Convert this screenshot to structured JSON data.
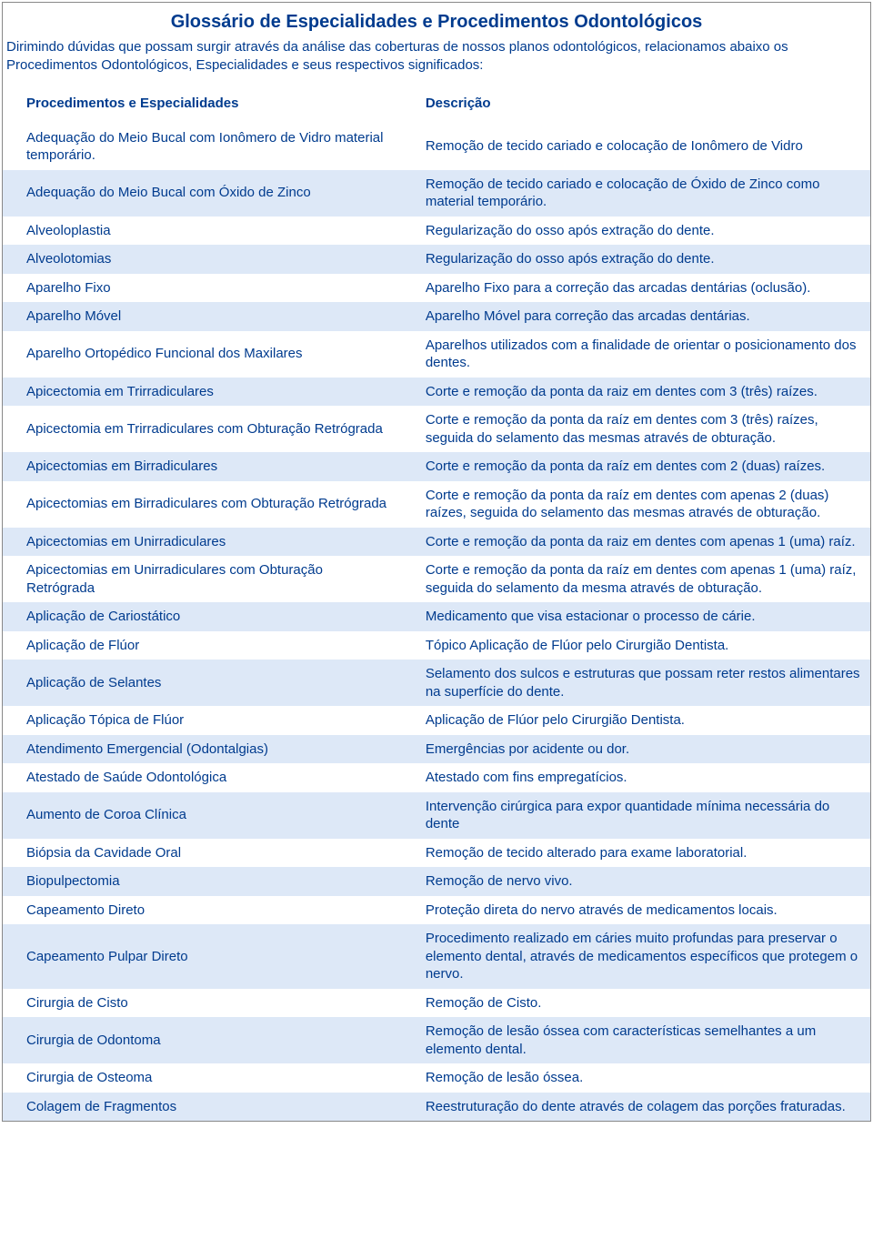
{
  "colors": {
    "text": "#003b8e",
    "row_alt_bg": "#dde8f7",
    "border": "#888888",
    "background": "#ffffff"
  },
  "typography": {
    "title_fontsize": 20,
    "body_fontsize": 15
  },
  "title": "Glossário de Especialidades e Procedimentos Odontológicos",
  "subtitle": "Dirimindo dúvidas que possam surgir através da análise das coberturas de nossos planos odontológicos, relacionamos abaixo os Procedimentos Odontológicos, Especialidades e seus respectivos significados:",
  "table": {
    "headers": {
      "proc": "Procedimentos e Especialidades",
      "desc": "Descrição"
    },
    "rows": [
      {
        "proc": "Adequação do Meio Bucal com Ionômero de Vidro material temporário.",
        "desc": "Remoção de tecido cariado e colocação de Ionômero de Vidro"
      },
      {
        "proc": "Adequação do Meio Bucal com Óxido de Zinco",
        "desc": "Remoção de tecido cariado e colocação de Óxido de Zinco como material temporário."
      },
      {
        "proc": "Alveoloplastia",
        "desc": "Regularização do osso após extração do dente."
      },
      {
        "proc": "Alveolotomias",
        "desc": "Regularização do osso após extração do dente."
      },
      {
        "proc": "Aparelho Fixo",
        "desc": "Aparelho Fixo para a correção das arcadas dentárias (oclusão)."
      },
      {
        "proc": "Aparelho Móvel",
        "desc": "Aparelho Móvel para correção das arcadas dentárias."
      },
      {
        "proc": "Aparelho Ortopédico Funcional dos Maxilares",
        "desc": "Aparelhos utilizados com a finalidade de orientar o posicionamento dos dentes."
      },
      {
        "proc": "Apicectomia em Trirradiculares",
        "desc": "Corte e remoção da ponta da raiz em dentes com 3 (três) raízes."
      },
      {
        "proc": "Apicectomia em Trirradiculares com Obturação Retrógrada",
        "desc": "Corte e remoção da ponta da raíz em dentes com 3 (três) raízes, seguida do selamento das mesmas através de obturação."
      },
      {
        "proc": "Apicectomias em Birradiculares",
        "desc": "Corte e remoção da ponta da raíz em dentes com 2 (duas) raízes."
      },
      {
        "proc": "Apicectomias em Birradiculares com Obturação Retrógrada",
        "desc": "Corte e remoção da ponta da raíz em dentes com apenas 2 (duas) raízes, seguida do selamento das mesmas através de obturação."
      },
      {
        "proc": "Apicectomias em Unirradiculares",
        "desc": "Corte e remoção da ponta da raiz em dentes com apenas 1 (uma) raíz."
      },
      {
        "proc": "Apicectomias em Unirradiculares com Obturação Retrógrada",
        "desc": "Corte e remoção da ponta da raíz em dentes com apenas 1 (uma) raíz, seguida do selamento da mesma através de obturação."
      },
      {
        "proc": "Aplicação de Cariostático",
        "desc": "Medicamento que visa estacionar o processo de cárie."
      },
      {
        "proc": "Aplicação de Flúor",
        "desc": "Tópico Aplicação de Flúor pelo Cirurgião Dentista."
      },
      {
        "proc": "Aplicação de Selantes",
        "desc": "Selamento dos sulcos e estruturas que possam reter restos alimentares na superfície do dente."
      },
      {
        "proc": "Aplicação Tópica de Flúor",
        "desc": "Aplicação de Flúor pelo Cirurgião Dentista."
      },
      {
        "proc": "Atendimento Emergencial (Odontalgias)",
        "desc": "Emergências por acidente ou dor."
      },
      {
        "proc": "Atestado de Saúde Odontológica",
        "desc": "Atestado com fins empregatícios."
      },
      {
        "proc": "Aumento de Coroa Clínica",
        "desc": "Intervenção cirúrgica para expor quantidade mínima necessária do dente"
      },
      {
        "proc": "Biópsia da Cavidade Oral",
        "desc": "Remoção de tecido alterado para exame laboratorial."
      },
      {
        "proc": "Biopulpectomia",
        "desc": "Remoção de nervo vivo."
      },
      {
        "proc": "Capeamento Direto",
        "desc": "Proteção direta do nervo através de medicamentos locais."
      },
      {
        "proc": "Capeamento Pulpar Direto",
        "desc": "Procedimento realizado em cáries muito profundas para preservar o elemento dental, através de medicamentos específicos que protegem o nervo."
      },
      {
        "proc": "Cirurgia de Cisto",
        "desc": "Remoção de Cisto."
      },
      {
        "proc": "Cirurgia de Odontoma",
        "desc": "Remoção de lesão óssea com características semelhantes a um elemento dental."
      },
      {
        "proc": "Cirurgia de Osteoma",
        "desc": "Remoção de lesão óssea."
      },
      {
        "proc": "Colagem de Fragmentos",
        "desc": "Reestruturação do dente através de colagem das porções fraturadas."
      }
    ]
  }
}
